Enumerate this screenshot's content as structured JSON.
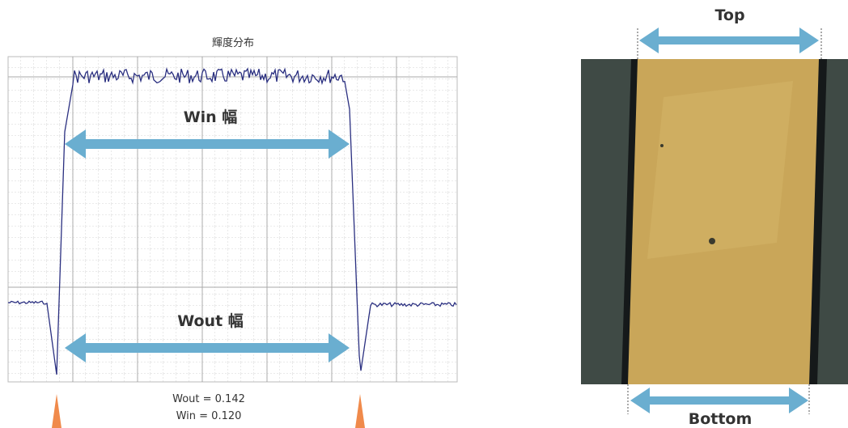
{
  "plot": {
    "title": "輝度分布",
    "win_label": "Win 幅",
    "wout_label": "Wout 幅",
    "results": [
      "Wout = 0.142",
      "Win = 0.120"
    ]
  },
  "photo": {
    "top_label": "Top",
    "bottom_label": "Bottom"
  }
}
